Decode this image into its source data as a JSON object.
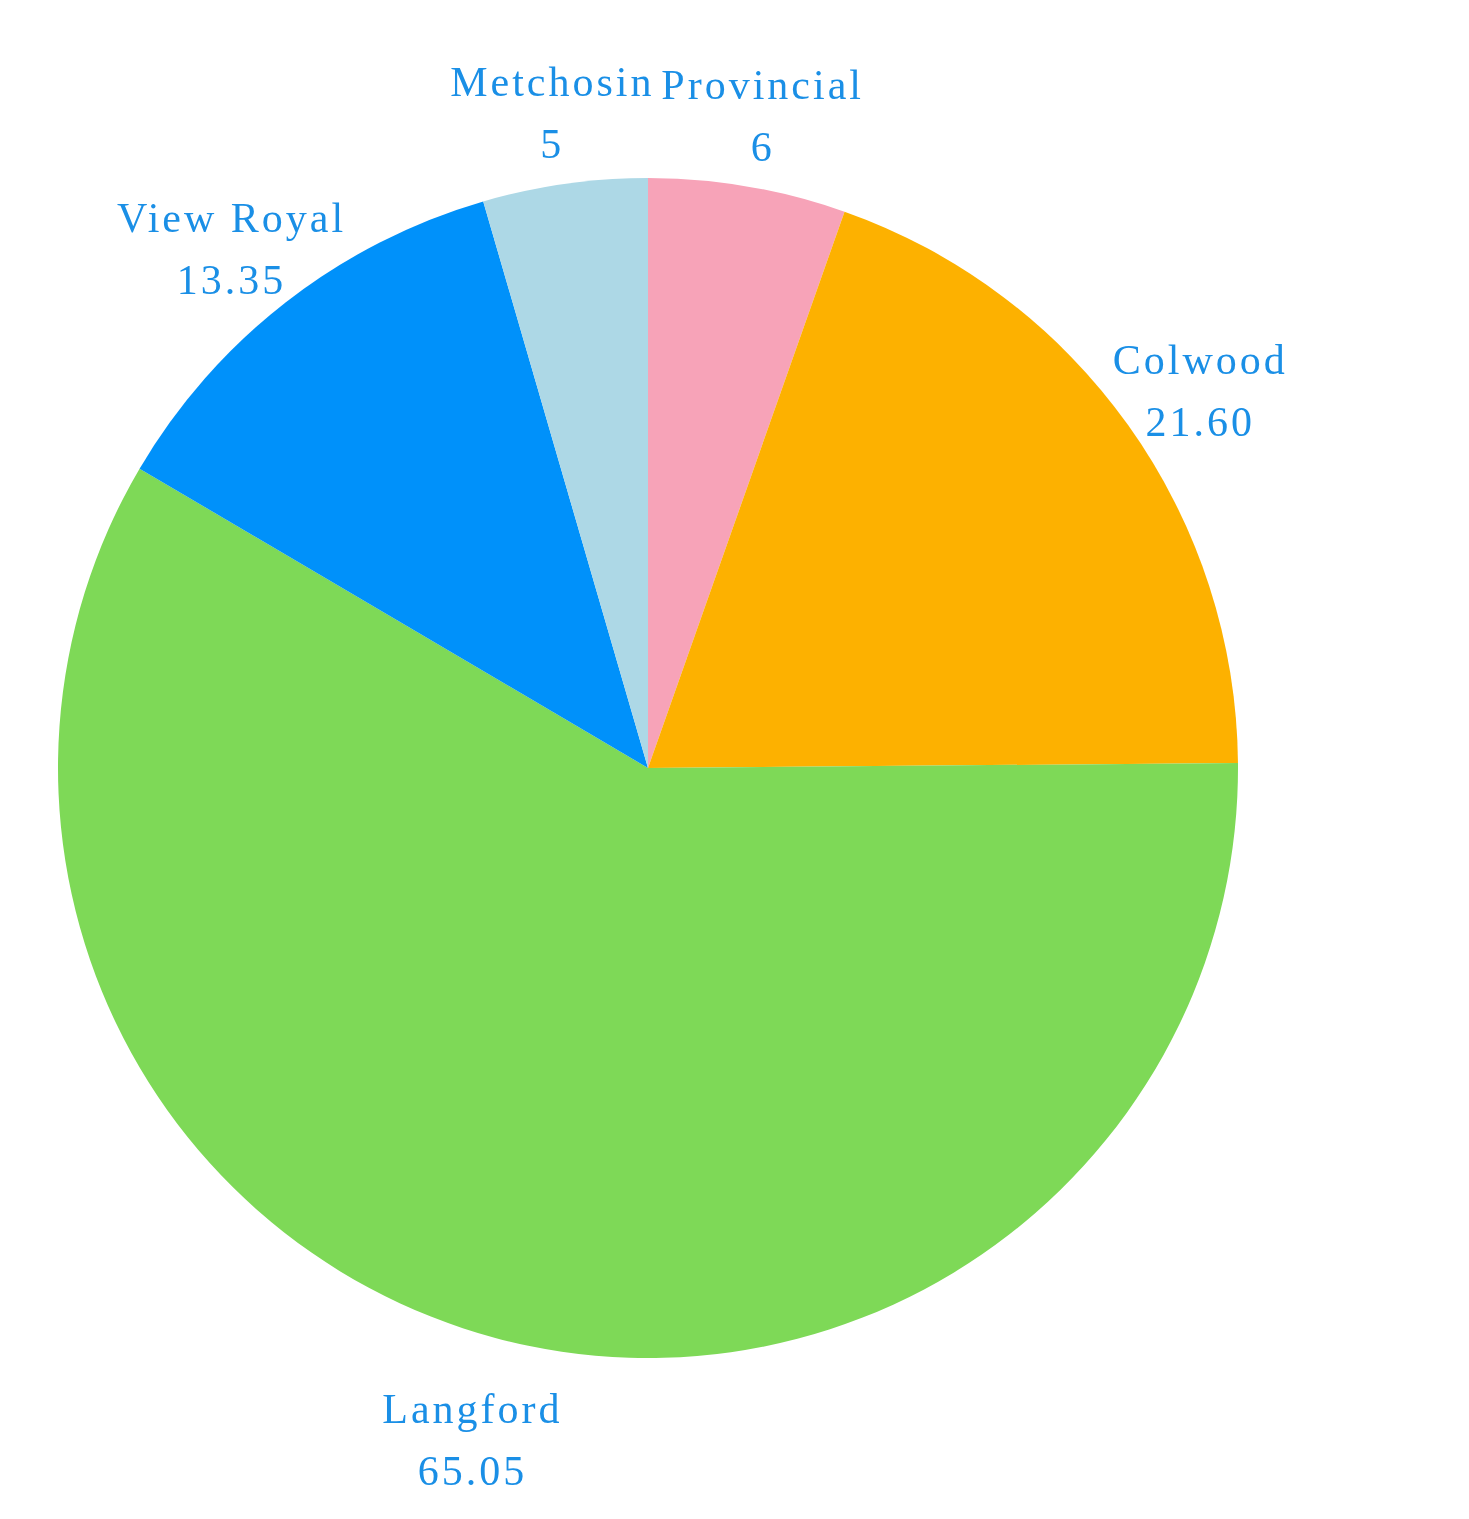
{
  "chart_data": {
    "type": "pie",
    "categories": [
      "Provincial",
      "Colwood",
      "Langford",
      "View Royal",
      "Metchosin"
    ],
    "values": [
      6,
      21.6,
      65.05,
      13.35,
      5
    ],
    "value_labels": [
      "6",
      "21.60",
      "65.05",
      "13.35",
      "5"
    ],
    "colors": [
      "#f7a3b8",
      "#fdb100",
      "#7ed957",
      "#0091fa",
      "#add8e6"
    ]
  }
}
